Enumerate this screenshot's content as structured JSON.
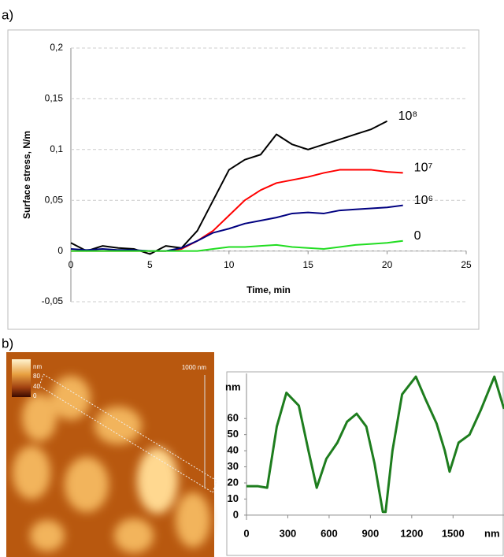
{
  "panels": {
    "a": "a)",
    "b": "b)"
  },
  "afm_image": {
    "unit": "nm",
    "colorbar": [
      "80",
      "40",
      "0"
    ],
    "scale_bar": "1000 nm"
  },
  "chart_data": [
    {
      "type": "line",
      "x_label": "Time, min",
      "y_label": "Surface stress, N/m",
      "xlim": [
        0,
        25
      ],
      "xticks": [
        0,
        5,
        10,
        15,
        20,
        25
      ],
      "ylim": [
        -0.05,
        0.2
      ],
      "yticks": [
        {
          "value": -0.05,
          "label": "-0,05"
        },
        0,
        {
          "value": 0.05,
          "label": "0,05"
        },
        {
          "value": 0.1,
          "label": "0,1"
        },
        {
          "value": 0.15,
          "label": "0,15"
        },
        {
          "value": 0.2,
          "label": "0,2"
        }
      ],
      "grid": true,
      "x": [
        0,
        1,
        2,
        3,
        4,
        5,
        6,
        7,
        8,
        9,
        10,
        11,
        12,
        13,
        14,
        15,
        16,
        17,
        18,
        19,
        20,
        21
      ],
      "series": [
        {
          "name": "10⁸",
          "color": "#000000",
          "values": [
            0.008,
            0.0,
            0.005,
            0.003,
            0.002,
            -0.003,
            0.005,
            0.003,
            0.02,
            0.05,
            0.08,
            0.09,
            0.095,
            0.115,
            0.105,
            0.1,
            0.105,
            0.11,
            0.115,
            0.12,
            0.128,
            null
          ]
        },
        {
          "name": "10⁷",
          "color": "#ff0000",
          "values": [
            0,
            0,
            0,
            0,
            0,
            0,
            0,
            0.002,
            0.01,
            0.02,
            0.035,
            0.05,
            0.06,
            0.067,
            0.07,
            0.073,
            0.077,
            0.08,
            0.08,
            0.08,
            0.078,
            0.077
          ]
        },
        {
          "name": "10⁶",
          "color": "#000080",
          "values": [
            0.002,
            0.001,
            0.002,
            0.001,
            0.001,
            0,
            0,
            0.003,
            0.01,
            0.018,
            0.022,
            0.027,
            0.03,
            0.033,
            0.037,
            0.038,
            0.037,
            0.04,
            0.041,
            0.042,
            0.043,
            0.045
          ]
        },
        {
          "name": "0",
          "color": "#22dd22",
          "values": [
            0,
            0,
            0,
            0,
            0,
            0,
            0,
            0,
            0,
            0.002,
            0.004,
            0.004,
            0.005,
            0.006,
            0.004,
            0.003,
            0.002,
            0.004,
            0.006,
            0.007,
            0.008,
            0.01
          ]
        }
      ]
    },
    {
      "type": "line",
      "x_label": "nm",
      "y_label": "nm",
      "xlim": [
        0,
        1870
      ],
      "xticks": [
        0,
        300,
        600,
        900,
        1200,
        1500
      ],
      "ylim": [
        -3,
        88
      ],
      "yticks": [
        0,
        10,
        20,
        30,
        40,
        50,
        60
      ],
      "grid": false,
      "x": [
        0,
        80,
        150,
        220,
        290,
        380,
        450,
        510,
        580,
        660,
        730,
        800,
        870,
        930,
        990,
        1010,
        1060,
        1130,
        1230,
        1300,
        1380,
        1440,
        1475,
        1540,
        1620,
        1700,
        1800,
        1870
      ],
      "series": [
        {
          "color": "#1e7d1e",
          "values": [
            18,
            18,
            17,
            55,
            76,
            68,
            40,
            17,
            35,
            45,
            58,
            63,
            55,
            32,
            2,
            2,
            40,
            75,
            86,
            72,
            57,
            40,
            27,
            45,
            50,
            65,
            86,
            66
          ]
        }
      ]
    }
  ]
}
